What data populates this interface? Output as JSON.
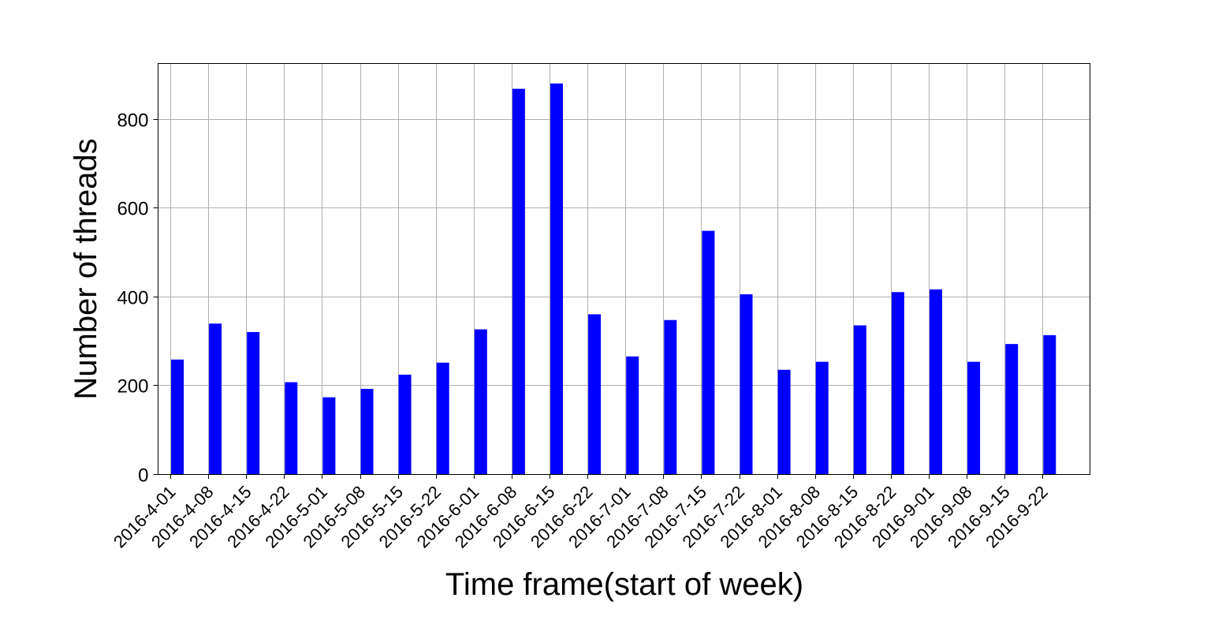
{
  "chart_data": {
    "type": "bar",
    "title": "",
    "xlabel": "Time frame(start of week)",
    "ylabel": "Number of threads",
    "categories": [
      "2016-4-01",
      "2016-4-08",
      "2016-4-15",
      "2016-4-22",
      "2016-5-01",
      "2016-5-08",
      "2016-5-15",
      "2016-5-22",
      "2016-6-01",
      "2016-6-08",
      "2016-6-15",
      "2016-6-22",
      "2016-7-01",
      "2016-7-08",
      "2016-7-15",
      "2016-7-22",
      "2016-8-01",
      "2016-8-08",
      "2016-8-15",
      "2016-8-22",
      "2016-9-01",
      "2016-9-08",
      "2016-9-15",
      "2016-9-22"
    ],
    "values": [
      258,
      339,
      320,
      207,
      173,
      192,
      224,
      251,
      326,
      868,
      880,
      360,
      265,
      347,
      548,
      405,
      235,
      253,
      335,
      410,
      416,
      253,
      293,
      313
    ],
    "ylim": [
      0,
      925
    ],
    "yticks": [
      0,
      200,
      400,
      600,
      800
    ],
    "grid": true,
    "legend": "none",
    "bar_color": "#0000ff"
  }
}
